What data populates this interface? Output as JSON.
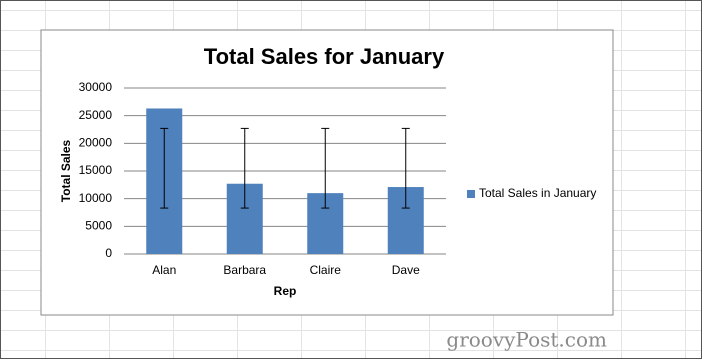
{
  "chart_data": {
    "type": "bar",
    "title": "Total Sales for January",
    "x_label": "Rep",
    "y_label": "Total Sales",
    "categories": [
      "Alan",
      "Barbara",
      "Claire",
      "Dave"
    ],
    "series": [
      {
        "name": "Total Sales in January",
        "color": "#4f81bd",
        "values": [
          26300,
          12700,
          11000,
          12100
        ]
      }
    ],
    "error_center": 15500,
    "error_amount": 7200,
    "ylim": [
      0,
      30000
    ],
    "yticks": [
      0,
      5000,
      10000,
      15000,
      20000,
      25000,
      30000
    ],
    "grid": true,
    "legend": "right"
  },
  "watermark": "groovyPost.com"
}
